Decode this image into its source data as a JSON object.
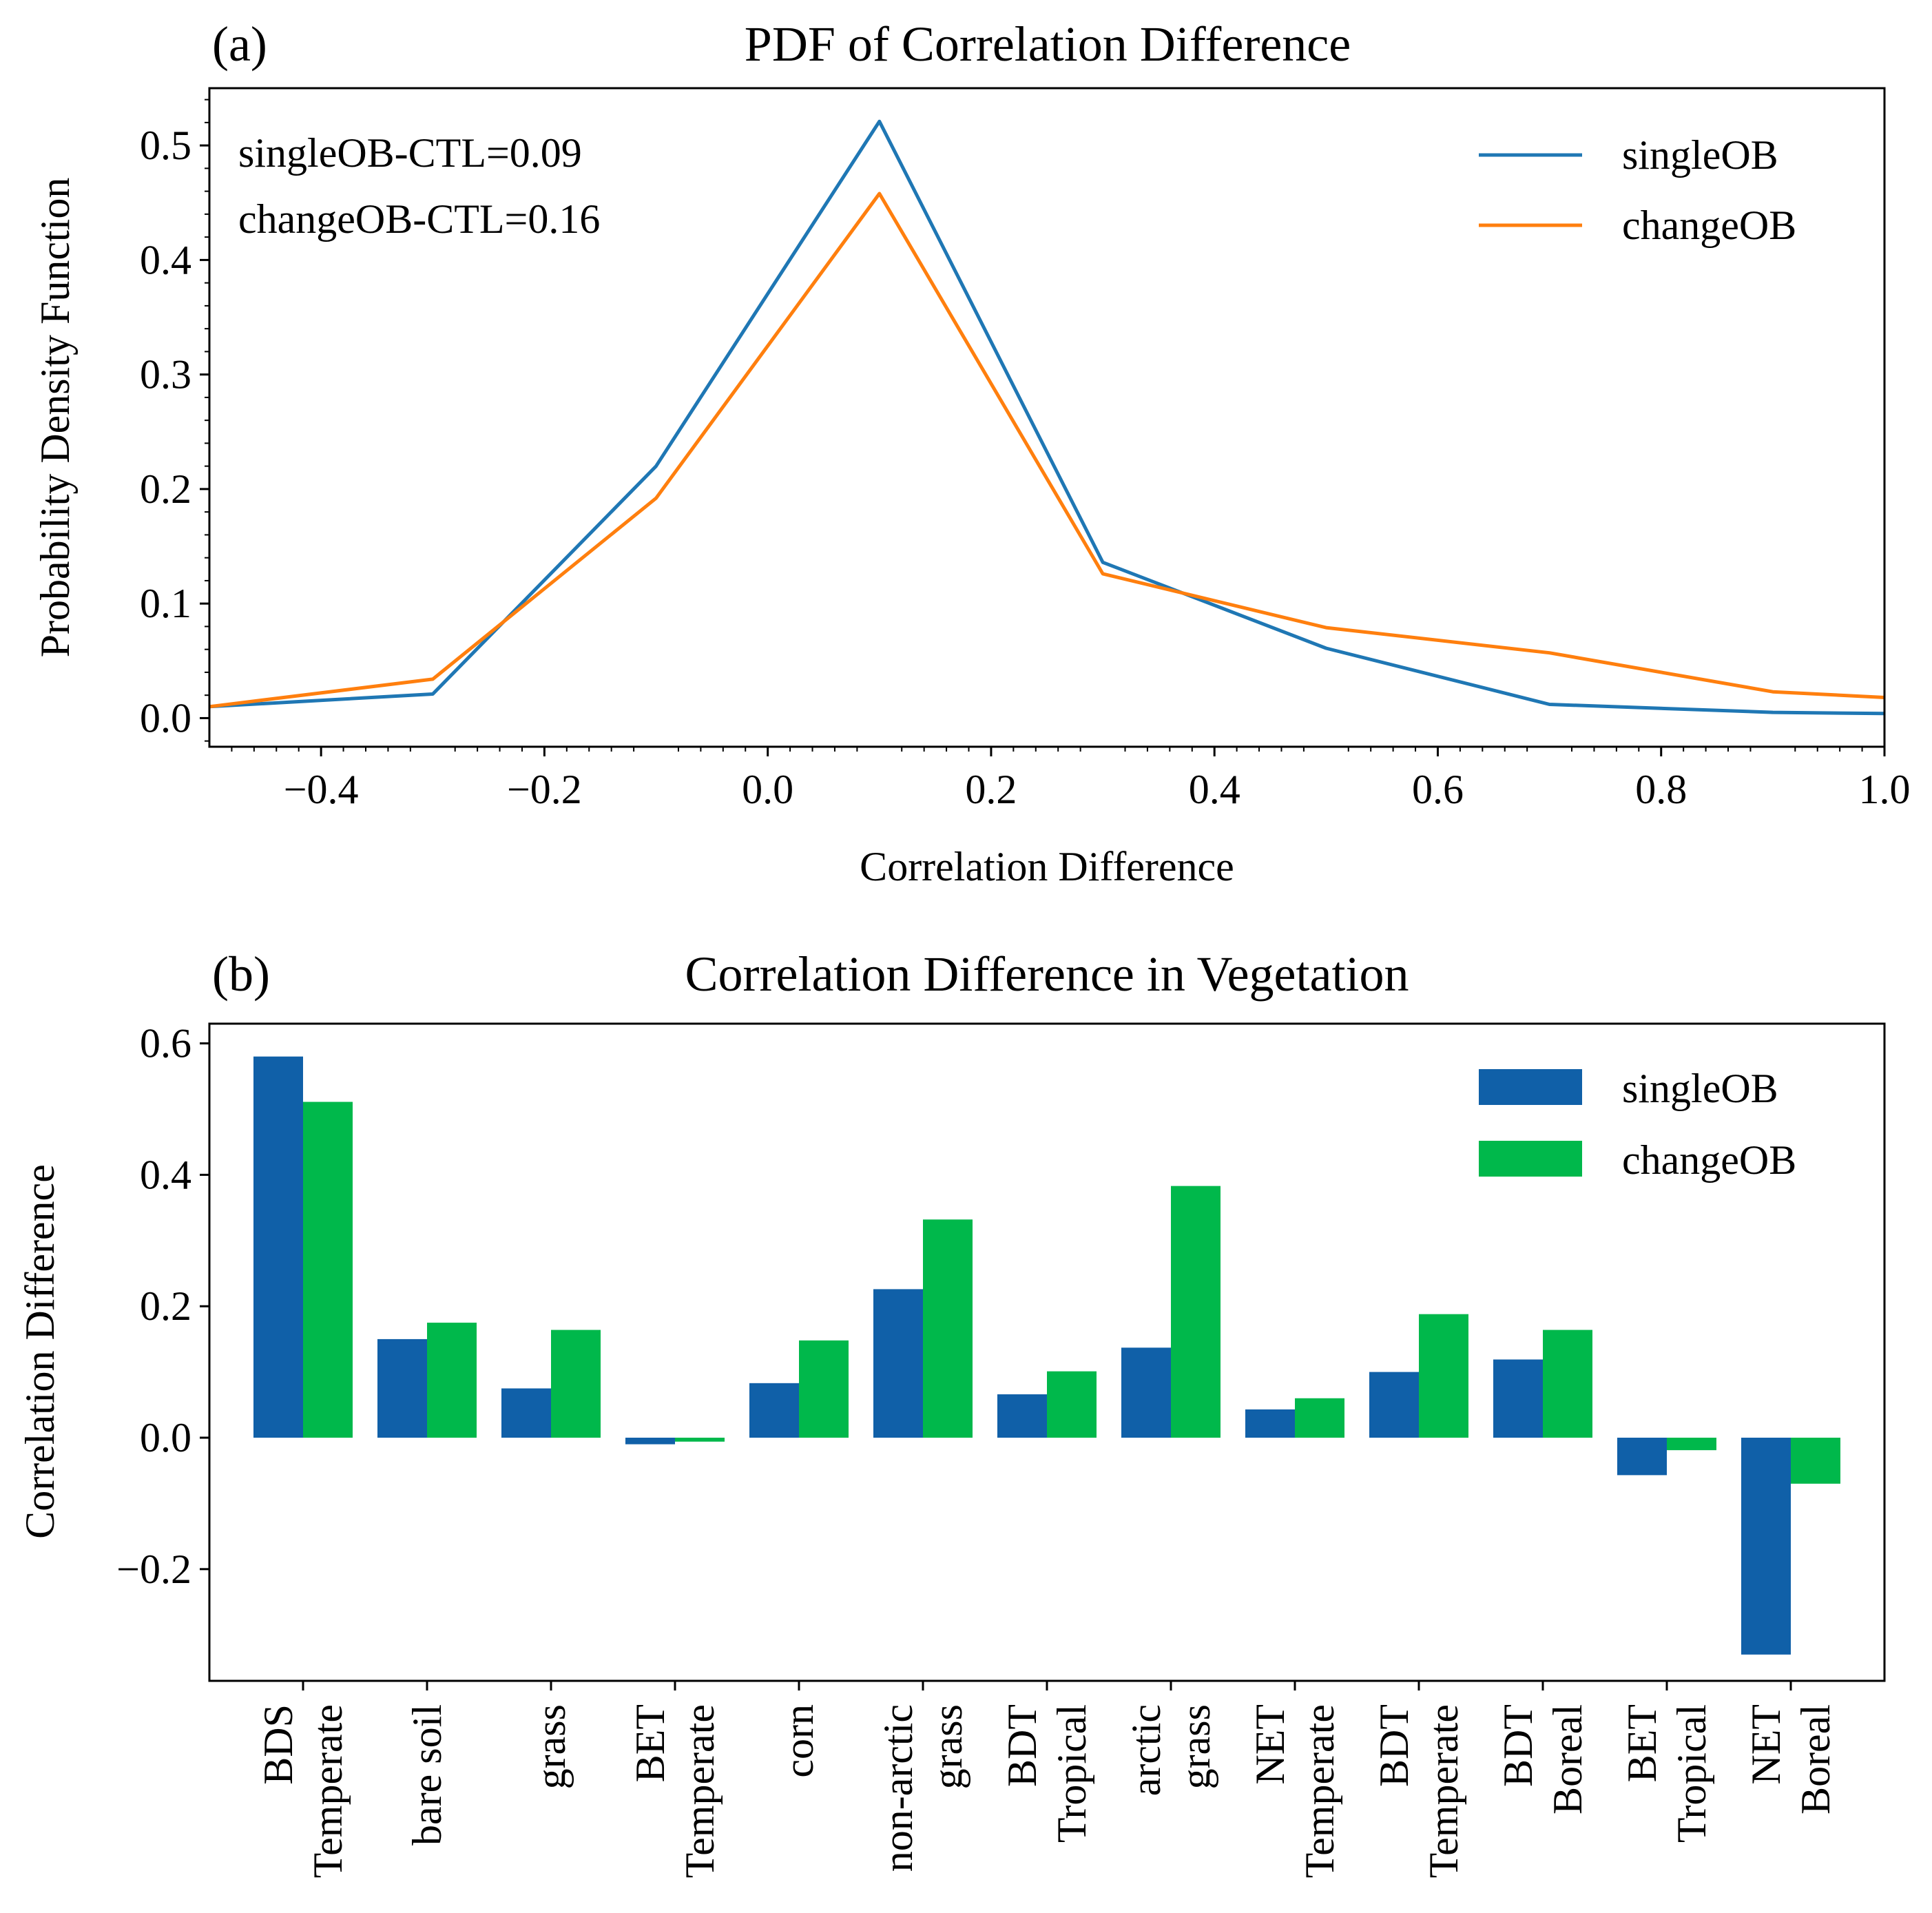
{
  "chart_data": [
    {
      "panel_label": "(a)",
      "type": "line",
      "title": "PDF of Correlation Difference",
      "xlabel": "Correlation Difference",
      "ylabel": "Probability Density Function",
      "xlim": [
        -0.5,
        1.0
      ],
      "ylim": [
        -0.025,
        0.55
      ],
      "xticks": [
        -0.4,
        -0.2,
        0.0,
        0.2,
        0.4,
        0.6,
        0.8,
        1.0
      ],
      "xtick_labels": [
        "−0.4",
        "−0.2",
        "0.0",
        "0.2",
        "0.4",
        "0.6",
        "0.8",
        "1.0"
      ],
      "yticks": [
        0.0,
        0.1,
        0.2,
        0.3,
        0.4,
        0.5
      ],
      "ytick_labels": [
        "0.0",
        "0.1",
        "0.2",
        "0.3",
        "0.4",
        "0.5"
      ],
      "x": [
        -0.5,
        -0.3,
        -0.1,
        0.1,
        0.3,
        0.5,
        0.7,
        0.9,
        1.0
      ],
      "series": [
        {
          "name": "singleOB",
          "color": "#1f77b4",
          "values": [
            0.01,
            0.021,
            0.22,
            0.521,
            0.136,
            0.061,
            0.012,
            0.005,
            0.004
          ]
        },
        {
          "name": "changeOB",
          "color": "#ff7f0e",
          "values": [
            0.01,
            0.034,
            0.192,
            0.458,
            0.126,
            0.079,
            0.057,
            0.023,
            0.018
          ]
        }
      ],
      "annotations": [
        "singleOB-CTL=0.09",
        "changeOB-CTL=0.16"
      ],
      "legend_position": "top-right"
    },
    {
      "panel_label": "(b)",
      "type": "bar",
      "title": "Correlation Difference in Vegetation",
      "xlabel": "",
      "ylabel": "Correlation Difference",
      "ylim": [
        -0.37,
        0.63
      ],
      "yticks": [
        -0.2,
        0.0,
        0.2,
        0.4,
        0.6
      ],
      "ytick_labels": [
        "−0.2",
        "0.0",
        "0.2",
        "0.4",
        "0.6"
      ],
      "categories": [
        [
          "BDS",
          "Temperate"
        ],
        [
          "bare soil"
        ],
        [
          "grass"
        ],
        [
          "BET",
          "Temperate"
        ],
        [
          "corn"
        ],
        [
          "non-arctic",
          "grass"
        ],
        [
          "BDT",
          "Tropical"
        ],
        [
          "arctic",
          "grass"
        ],
        [
          "NET",
          "Temperate"
        ],
        [
          "BDT",
          "Temperate"
        ],
        [
          "BDT",
          "Boreal"
        ],
        [
          "BET",
          "Tropical"
        ],
        [
          "NET",
          "Boreal"
        ]
      ],
      "series": [
        {
          "name": "singleOB",
          "color": "#1060a8",
          "values": [
            0.58,
            0.15,
            0.075,
            -0.01,
            0.083,
            0.226,
            0.066,
            0.137,
            0.043,
            0.1,
            0.119,
            -0.057,
            -0.33
          ]
        },
        {
          "name": "changeOB",
          "color": "#00b84b",
          "values": [
            0.511,
            0.175,
            0.164,
            -0.006,
            0.148,
            0.332,
            0.101,
            0.383,
            0.06,
            0.188,
            0.164,
            -0.019,
            -0.07
          ]
        }
      ],
      "legend_position": "top-right"
    }
  ]
}
